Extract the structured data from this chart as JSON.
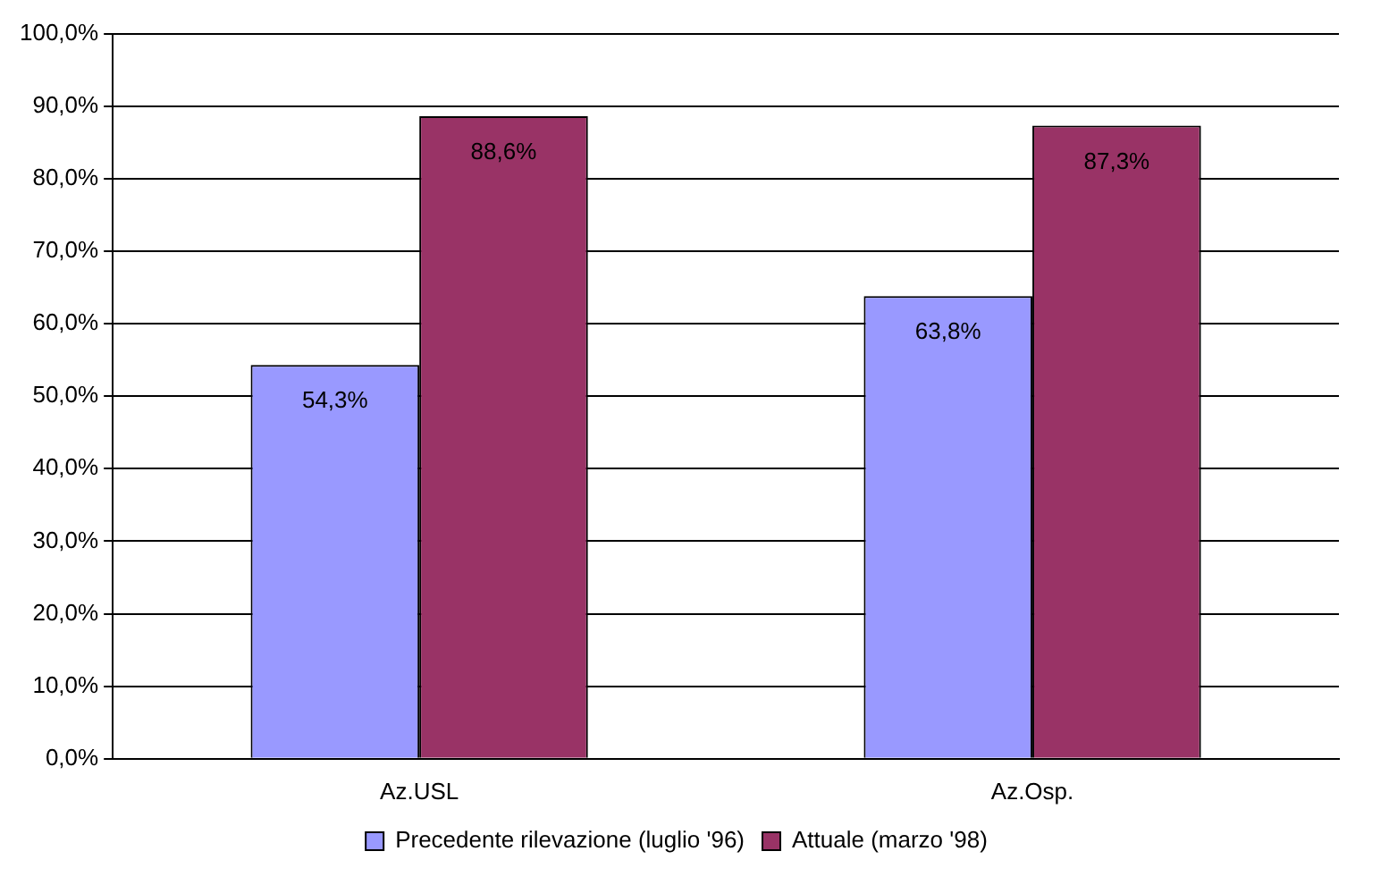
{
  "chart_data": {
    "type": "bar",
    "categories": [
      "Az.USL",
      "Az.Osp."
    ],
    "series": [
      {
        "name": "Precedente rilevazione (luglio '96)",
        "color": "#9999ff",
        "values": [
          54.3,
          63.8
        ],
        "value_labels": [
          "54,3%",
          "63,8%"
        ]
      },
      {
        "name": "Attuale (marzo '98)",
        "color": "#993366",
        "values": [
          88.6,
          87.3
        ],
        "value_labels": [
          "88,6%",
          "87,3%"
        ]
      }
    ],
    "ylim": [
      0,
      100
    ],
    "yticks": [
      {
        "value": 0,
        "label": "0,0%"
      },
      {
        "value": 10,
        "label": "10,0%"
      },
      {
        "value": 20,
        "label": "20,0%"
      },
      {
        "value": 30,
        "label": "30,0%"
      },
      {
        "value": 40,
        "label": "40,0%"
      },
      {
        "value": 50,
        "label": "50,0%"
      },
      {
        "value": 60,
        "label": "60,0%"
      },
      {
        "value": 70,
        "label": "70,0%"
      },
      {
        "value": 80,
        "label": "80,0%"
      },
      {
        "value": 90,
        "label": "90,0%"
      },
      {
        "value": 100,
        "label": "100,0%"
      }
    ],
    "grid": "y",
    "legend": "bottom"
  }
}
